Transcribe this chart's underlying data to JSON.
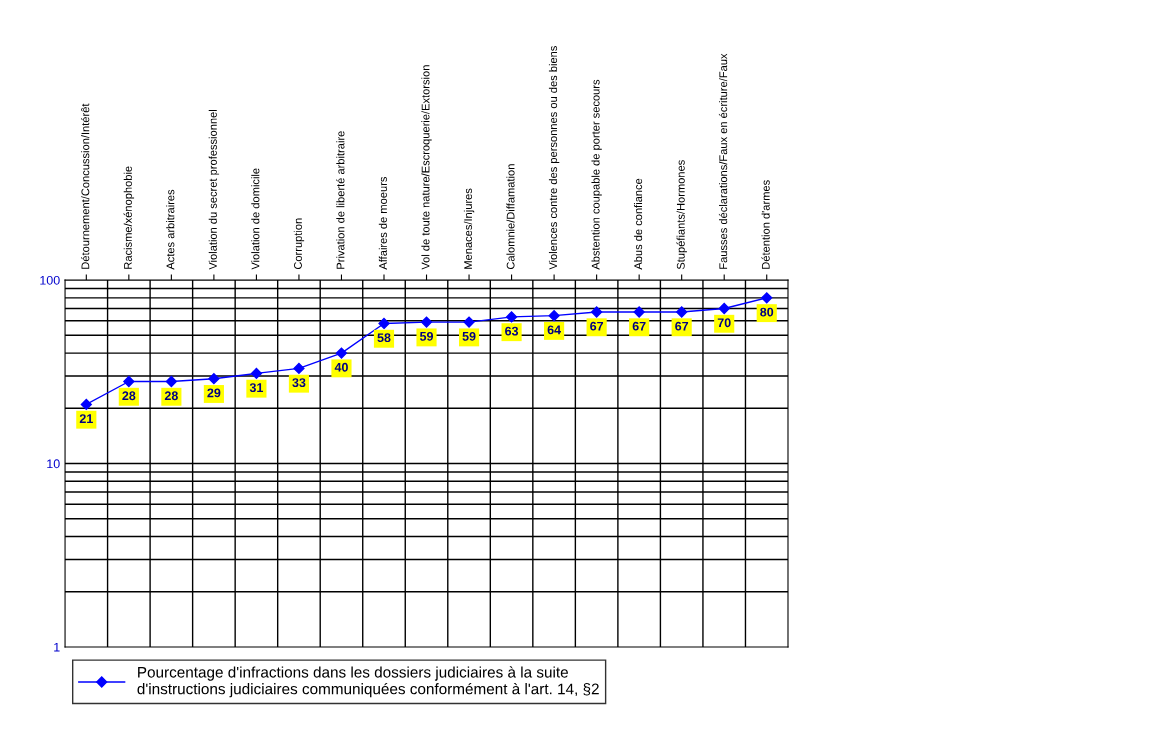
{
  "chart_data": {
    "type": "line",
    "categories": [
      "Détournement/Concussion/Intérêt",
      "Racisme/xénophobie",
      "Actes arbitraires",
      "Violation du secret professionnel",
      "Violation de domicile",
      "Corruption",
      "Privation de liberté arbitraire",
      "Affaires de moeurs",
      "Vol de toute nature/Escroquerie/Extorsion",
      "Menaces/Injures",
      "Calomnie/Diffamation",
      "Violences contre des personnes ou des biens",
      "Abstention coupable de porter secours",
      "Abus de confiance",
      "Stupéfiants/Hormones",
      "Fausses déclarations/Faux en écriture/Faux",
      "Détention d'armes"
    ],
    "series": [
      {
        "name": "Pourcentage d'infractions dans les dossiers judiciaires à la suite\nd'instructions judiciaires communiquées conformément à l'art. 14, §2",
        "color": "#0000ff",
        "values": [
          21,
          28,
          28,
          29,
          31,
          33,
          40,
          58,
          59,
          59,
          63,
          64,
          67,
          67,
          67,
          70,
          80
        ]
      }
    ],
    "log": true,
    "ylim": [
      1,
      100
    ],
    "yticks": [
      1,
      10,
      100
    ],
    "grid": true,
    "legend": "bottom",
    "marker": "diamond",
    "line_style": "solid",
    "data_labels": true
  }
}
